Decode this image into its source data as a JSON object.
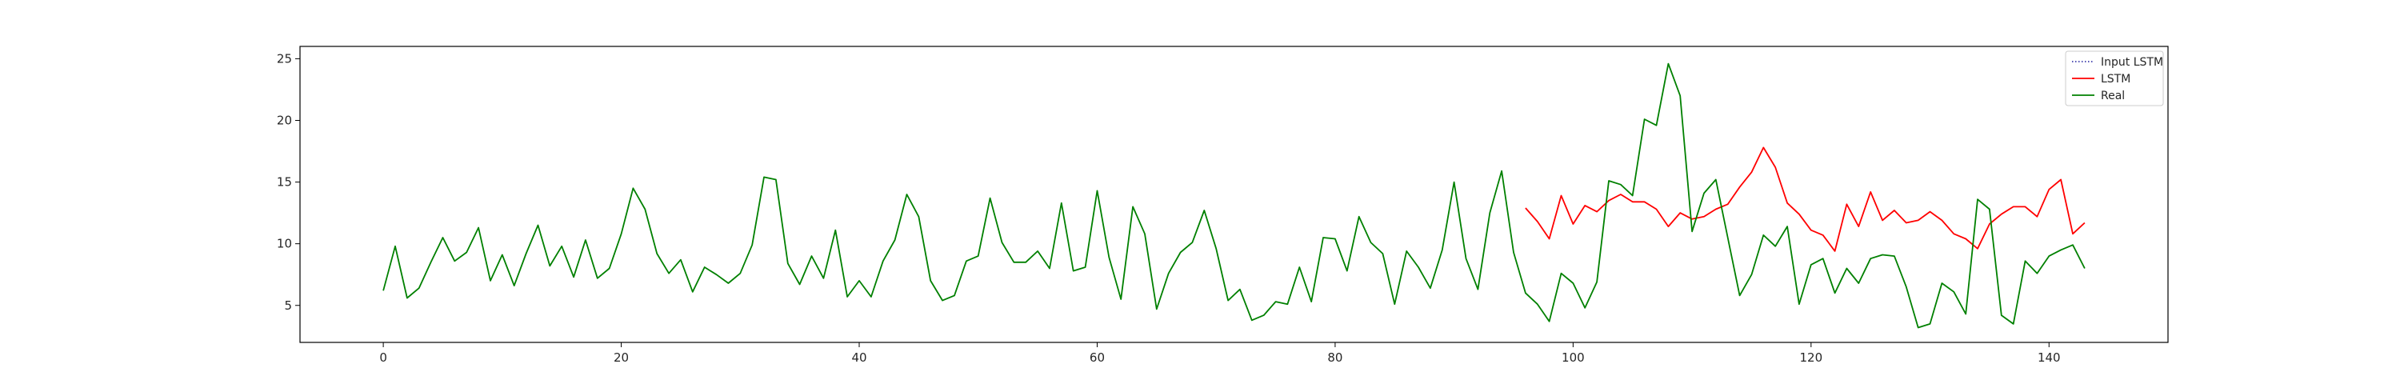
{
  "chart_data": {
    "type": "line",
    "title": "",
    "xlabel": "",
    "ylabel": "",
    "xlim": [
      -7,
      150
    ],
    "ylim": [
      2,
      26
    ],
    "xticks": [
      0,
      20,
      40,
      60,
      80,
      100,
      120,
      140
    ],
    "yticks": [
      5,
      10,
      15,
      20,
      25
    ],
    "grid": false,
    "legend_position": "top-right",
    "legend": [
      "Input LSTM",
      "LSTM",
      "Real"
    ],
    "series": [
      {
        "name": "Input LSTM",
        "color": "#1f1f9e",
        "style": "dotted",
        "x": [],
        "y": []
      },
      {
        "name": "LSTM",
        "color": "#ff0000",
        "style": "solid",
        "x_start": 96,
        "y": [
          12.9,
          11.8,
          10.4,
          13.9,
          11.6,
          13.1,
          12.6,
          13.5,
          14.0,
          13.4,
          13.4,
          12.8,
          11.4,
          12.5,
          12.0,
          12.2,
          12.8,
          13.2,
          14.6,
          15.8,
          17.8,
          16.2,
          13.3,
          12.4,
          11.1,
          10.7,
          9.4,
          13.2,
          11.4,
          14.2,
          11.9,
          12.7,
          11.7,
          11.9,
          12.6,
          11.9,
          10.8,
          10.4,
          9.6,
          11.6,
          12.4,
          13.0,
          13.0,
          12.2,
          14.4,
          15.2,
          10.8,
          11.7
        ]
      },
      {
        "name": "Real",
        "color": "#008000",
        "style": "solid",
        "x_start": 0,
        "y": [
          6.2,
          9.8,
          5.6,
          6.4,
          8.5,
          10.5,
          8.6,
          9.3,
          11.3,
          7.0,
          9.1,
          6.6,
          9.2,
          11.5,
          8.2,
          9.8,
          7.3,
          10.3,
          7.2,
          8.0,
          10.8,
          14.5,
          12.8,
          9.2,
          7.6,
          8.7,
          6.1,
          8.1,
          7.5,
          6.8,
          7.6,
          9.9,
          15.4,
          15.2,
          8.4,
          6.7,
          9.0,
          7.2,
          11.1,
          5.7,
          7.0,
          5.7,
          8.6,
          10.3,
          14.0,
          12.2,
          7.0,
          5.4,
          5.8,
          8.6,
          9.0,
          13.7,
          10.1,
          8.5,
          8.5,
          9.4,
          8.0,
          13.3,
          7.8,
          8.1,
          14.3,
          8.9,
          5.5,
          13.0,
          10.8,
          4.7,
          7.6,
          9.3,
          10.1,
          12.7,
          9.6,
          5.4,
          6.3,
          3.8,
          4.2,
          5.3,
          5.1,
          8.1,
          5.3,
          10.5,
          10.4,
          7.8,
          12.2,
          10.1,
          9.2,
          5.1,
          9.4,
          8.1,
          6.4,
          9.5,
          15.0,
          8.8,
          6.3,
          12.5,
          15.9,
          9.3,
          6.0,
          5.1,
          3.7,
          7.6,
          6.8,
          4.8,
          6.9,
          15.1,
          14.8,
          13.9,
          20.1,
          19.6,
          24.6,
          22.0,
          11.0,
          14.1,
          15.2,
          10.5,
          5.8,
          7.5,
          10.7,
          9.8,
          11.4,
          5.1,
          8.3,
          8.8,
          6.0,
          8.0,
          6.8,
          8.8,
          9.1,
          9.0,
          6.5,
          3.2,
          3.5,
          6.8,
          6.1,
          4.3,
          13.6,
          12.8,
          4.2,
          3.5,
          8.6,
          7.6,
          9.0,
          9.5,
          9.9,
          8.0
        ]
      }
    ]
  }
}
